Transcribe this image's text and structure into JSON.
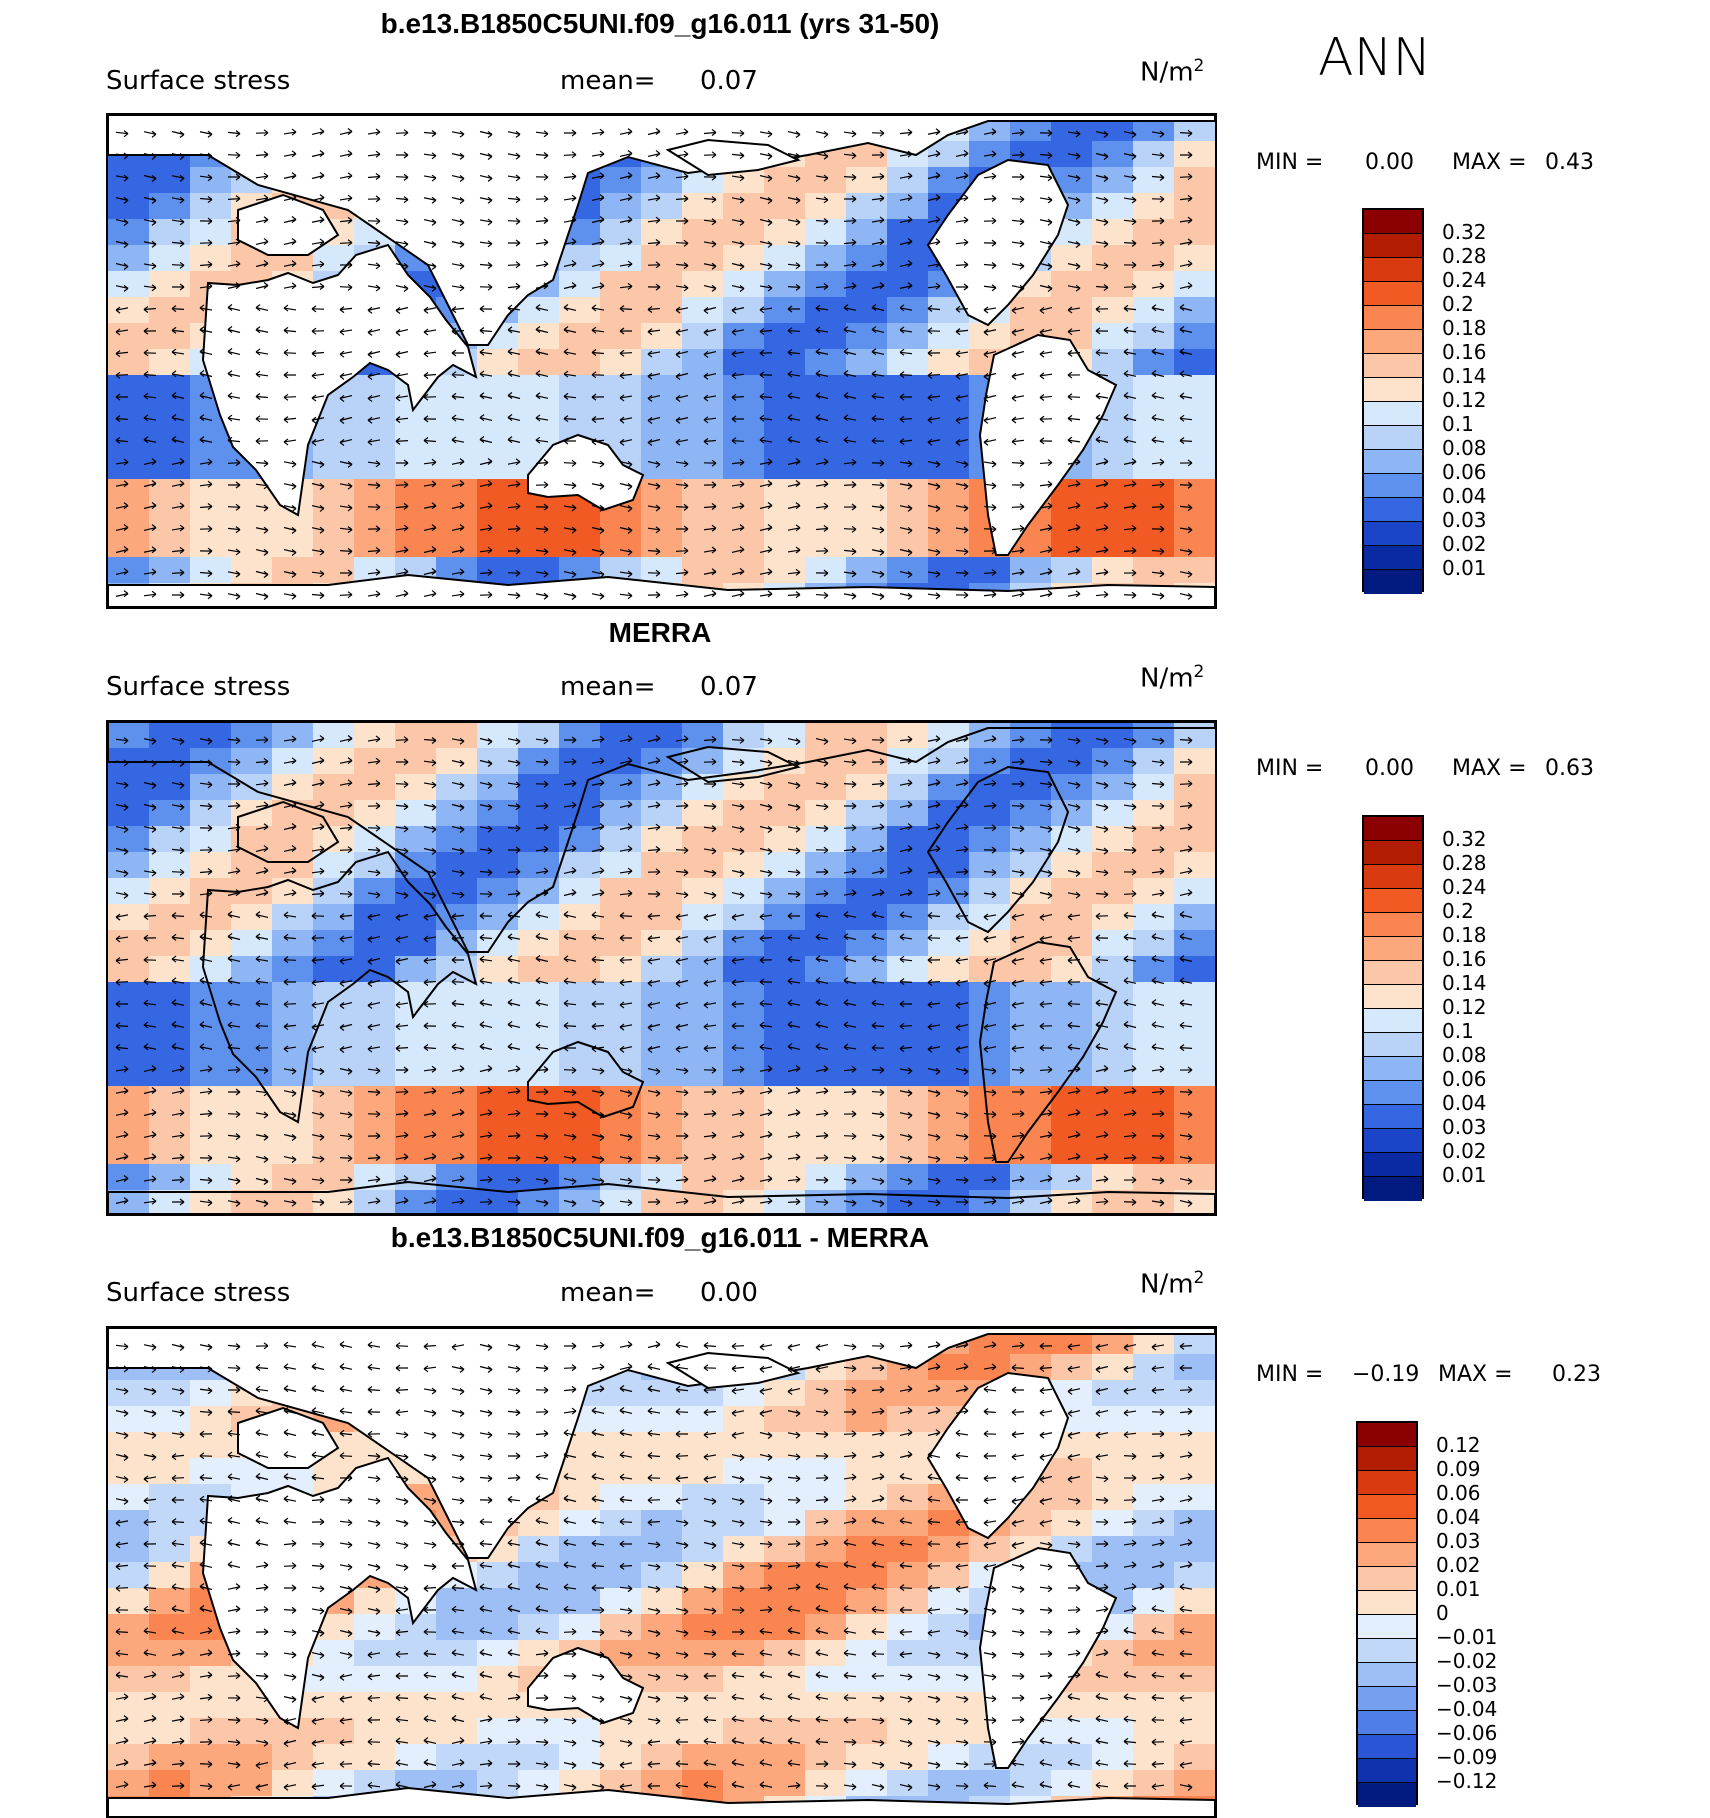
{
  "season": "ANN",
  "panels": [
    {
      "title": "b.e13.B1850C5UNI.f09_g16.011 (yrs 31-50)",
      "variable": "Surface stress",
      "mean_label": "mean=",
      "mean_value": "0.07",
      "units_base": "N/m",
      "units_exp": "2",
      "min_label": "MIN =",
      "min_value": "0.00",
      "max_label": "MAX =",
      "max_value": "0.43",
      "colorbar": {
        "labels": [
          "0.32",
          "0.28",
          "0.24",
          "0.2",
          "0.18",
          "0.16",
          "0.14",
          "0.12",
          "0.1",
          "0.08",
          "0.06",
          "0.04",
          "0.03",
          "0.02",
          "0.01"
        ],
        "colors": [
          "#8b0000",
          "#b21c00",
          "#d93a10",
          "#f15a22",
          "#fb8550",
          "#fca77c",
          "#fcc7a8",
          "#fde3cc",
          "#d6e8fb",
          "#b8d2f8",
          "#8eb6f4",
          "#5e91ee",
          "#3567e3",
          "#1c44c8",
          "#0a2aa4",
          "#001a80"
        ]
      }
    },
    {
      "title": "MERRA",
      "variable": "Surface stress",
      "mean_label": "mean=",
      "mean_value": "0.07",
      "units_base": "N/m",
      "units_exp": "2",
      "min_label": "MIN =",
      "min_value": "0.00",
      "max_label": "MAX =",
      "max_value": "0.63",
      "colorbar": {
        "labels": [
          "0.32",
          "0.28",
          "0.24",
          "0.2",
          "0.18",
          "0.16",
          "0.14",
          "0.12",
          "0.1",
          "0.08",
          "0.06",
          "0.04",
          "0.03",
          "0.02",
          "0.01"
        ],
        "colors": [
          "#8b0000",
          "#b21c00",
          "#d93a10",
          "#f15a22",
          "#fb8550",
          "#fca77c",
          "#fcc7a8",
          "#fde3cc",
          "#d6e8fb",
          "#b8d2f8",
          "#8eb6f4",
          "#5e91ee",
          "#3567e3",
          "#1c44c8",
          "#0a2aa4",
          "#001a80"
        ]
      }
    },
    {
      "title": "b.e13.B1850C5UNI.f09_g16.011 - MERRA",
      "variable": "Surface stress",
      "mean_label": "mean=",
      "mean_value": "0.00",
      "units_base": "N/m",
      "units_exp": "2",
      "min_label": "MIN =",
      "min_value": "−0.19",
      "max_label": "MAX =",
      "max_value": "0.23",
      "colorbar": {
        "labels": [
          "0.12",
          "0.09",
          "0.06",
          "0.04",
          "0.03",
          "0.02",
          "0.01",
          "0",
          "−0.01",
          "−0.02",
          "−0.03",
          "−0.04",
          "−0.06",
          "−0.09",
          "−0.12"
        ],
        "colors": [
          "#8b0000",
          "#b21c00",
          "#d93a10",
          "#f15a22",
          "#fb8550",
          "#fca77c",
          "#fcc7a8",
          "#fde3cc",
          "#e3effc",
          "#c2d8f8",
          "#9dbff5",
          "#769ff0",
          "#4f7ee8",
          "#2a55d4",
          "#0f32ae",
          "#001a80"
        ]
      }
    }
  ],
  "chart_data": [
    {
      "type": "heatmap",
      "title": "b.e13.B1850C5UNI.f09_g16.011 (yrs 31-50)",
      "variable": "Surface stress",
      "units": "N/m2",
      "mean": 0.07,
      "min": 0.0,
      "max": 0.43,
      "levels": [
        0.01,
        0.02,
        0.03,
        0.04,
        0.06,
        0.08,
        0.1,
        0.12,
        0.14,
        0.16,
        0.18,
        0.2,
        0.24,
        0.28,
        0.32
      ],
      "overlay": "wind stress vectors"
    },
    {
      "type": "heatmap",
      "title": "MERRA",
      "variable": "Surface stress",
      "units": "N/m2",
      "mean": 0.07,
      "min": 0.0,
      "max": 0.63,
      "levels": [
        0.01,
        0.02,
        0.03,
        0.04,
        0.06,
        0.08,
        0.1,
        0.12,
        0.14,
        0.16,
        0.18,
        0.2,
        0.24,
        0.28,
        0.32
      ],
      "overlay": "wind stress vectors"
    },
    {
      "type": "heatmap",
      "title": "b.e13.B1850C5UNI.f09_g16.011 - MERRA",
      "variable": "Surface stress",
      "units": "N/m2",
      "mean": 0.0,
      "min": -0.19,
      "max": 0.23,
      "levels": [
        -0.12,
        -0.09,
        -0.06,
        -0.04,
        -0.03,
        -0.02,
        -0.01,
        0,
        0.01,
        0.02,
        0.03,
        0.04,
        0.06,
        0.09,
        0.12
      ],
      "overlay": "wind stress difference vectors"
    }
  ]
}
